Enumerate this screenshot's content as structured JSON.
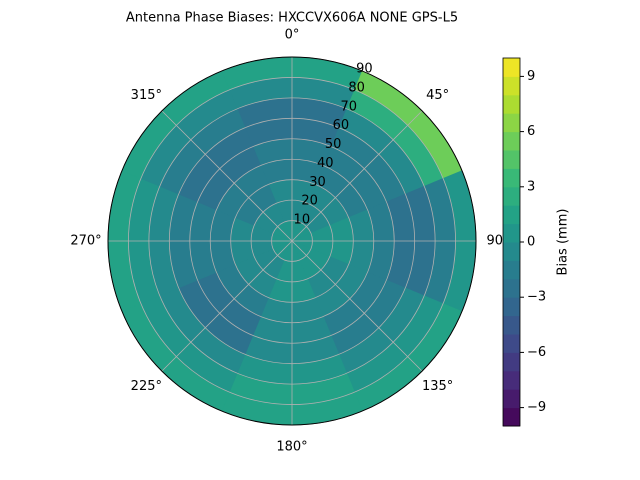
{
  "chart_data": {
    "type": "polar_contour",
    "title": "Antenna Phase Biases: HXCCVX606A      NONE GPS-L5",
    "theta": [
      0,
      45,
      90,
      135,
      180,
      225,
      270,
      315
    ],
    "r": [
      5,
      15,
      25,
      35,
      45,
      55,
      65,
      75,
      85
    ],
    "z": [
      [
        0,
        -0.5,
        -1,
        -1.5,
        -2,
        -2.5,
        -2.5,
        -1,
        1
      ],
      [
        0,
        -0.5,
        -1,
        -1.5,
        -2,
        -2,
        -1,
        2,
        5
      ],
      [
        0,
        0.5,
        0,
        -1,
        -2,
        -3,
        -3,
        -2,
        0
      ],
      [
        0,
        0,
        -0.5,
        -1,
        -2,
        -2,
        -1,
        0,
        1
      ],
      [
        0,
        0.5,
        0,
        -0.5,
        -1,
        -1,
        0,
        1,
        1.5
      ],
      [
        0,
        -0.5,
        -1,
        -2,
        -3,
        -2.5,
        -1,
        0.5,
        1
      ],
      [
        0,
        -0.5,
        -1,
        -1.5,
        -1.5,
        -2,
        -1,
        0,
        1
      ],
      [
        0,
        -0.5,
        -1.5,
        -2,
        -3,
        -2.5,
        -2,
        -0.5,
        1
      ]
    ],
    "rlim": [
      0,
      90
    ],
    "rticks": [
      10,
      20,
      30,
      40,
      50,
      60,
      70,
      80,
      90
    ],
    "thetaticks": [
      {
        "value": 0,
        "label": "0°"
      },
      {
        "value": 45,
        "label": "45°"
      },
      {
        "value": 90,
        "label": "90°"
      },
      {
        "value": 135,
        "label": "135°"
      },
      {
        "value": 180,
        "label": "180°"
      },
      {
        "value": 225,
        "label": "225°"
      },
      {
        "value": 270,
        "label": "270°"
      },
      {
        "value": 315,
        "label": "315°"
      }
    ],
    "clim": [
      -10,
      10
    ],
    "cticks": [
      {
        "value": -9,
        "label": "−9"
      },
      {
        "value": -6,
        "label": "−6"
      },
      {
        "value": -3,
        "label": "−3"
      },
      0,
      3,
      6,
      9
    ],
    "colorbar_label": "Bias (mm)",
    "colormap": "viridis",
    "grid": true
  }
}
